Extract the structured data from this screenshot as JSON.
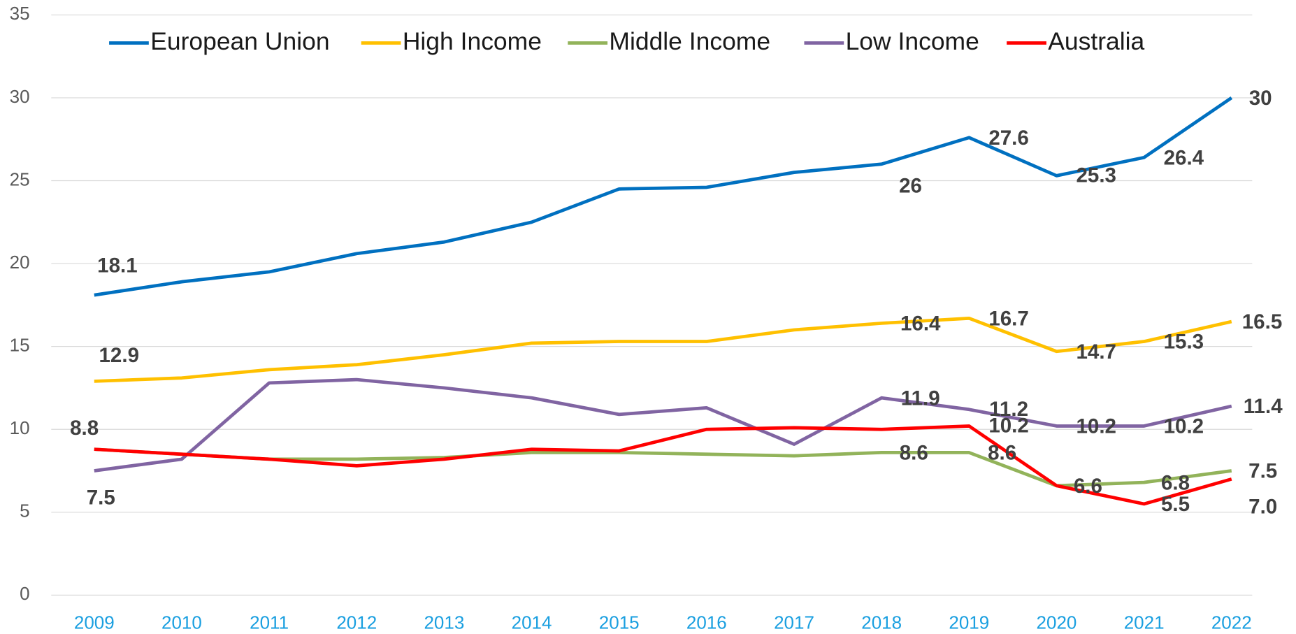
{
  "chart_data": {
    "type": "line",
    "categories": [
      "2009",
      "2010",
      "2011",
      "2012",
      "2013",
      "2014",
      "2015",
      "2016",
      "2017",
      "2018",
      "2019",
      "2020",
      "2021",
      "2022"
    ],
    "ylim": [
      0,
      35
    ],
    "yticks": [
      0,
      5,
      10,
      15,
      20,
      25,
      30,
      35
    ],
    "grid": true,
    "legend": "top",
    "series": [
      {
        "name": "European Union",
        "color": "#0070c0",
        "values": [
          18.1,
          18.9,
          19.5,
          20.6,
          21.3,
          22.5,
          24.5,
          24.6,
          25.5,
          26,
          27.6,
          25.3,
          26.4,
          30
        ],
        "value_labels": [
          "18.1",
          null,
          null,
          null,
          null,
          null,
          null,
          null,
          null,
          "26",
          "27.6",
          "25.3",
          "26.4",
          "30"
        ]
      },
      {
        "name": "High Income",
        "color": "#ffc000",
        "values": [
          12.9,
          13.1,
          13.6,
          13.9,
          14.5,
          15.2,
          15.3,
          15.3,
          16.0,
          16.4,
          16.7,
          14.7,
          15.3,
          16.5
        ],
        "value_labels": [
          "12.9",
          null,
          null,
          null,
          null,
          null,
          null,
          null,
          null,
          "16.4",
          "16.7",
          "14.7",
          "15.3",
          "16.5"
        ]
      },
      {
        "name": "Middle Income",
        "color": "#92b35a",
        "values": [
          8.8,
          8.5,
          8.2,
          8.2,
          8.3,
          8.6,
          8.6,
          8.5,
          8.4,
          8.6,
          8.6,
          6.6,
          6.8,
          7.5
        ],
        "value_labels": [
          null,
          null,
          null,
          null,
          null,
          null,
          null,
          null,
          null,
          "8.6",
          "8.6",
          "6.6",
          "6.8",
          "7.5"
        ]
      },
      {
        "name": "Low Income",
        "color": "#8064a2",
        "values": [
          7.5,
          8.2,
          12.8,
          13.0,
          12.5,
          11.9,
          10.9,
          11.3,
          9.1,
          11.9,
          11.2,
          10.2,
          10.2,
          11.4
        ],
        "value_labels": [
          "7.5",
          null,
          null,
          null,
          null,
          null,
          null,
          null,
          null,
          "11.9",
          "11.2",
          "10.2",
          "10.2",
          "11.4"
        ]
      },
      {
        "name": "Australia",
        "color": "#ff0000",
        "values": [
          8.8,
          8.5,
          8.2,
          7.8,
          8.2,
          8.8,
          8.7,
          10.0,
          10.1,
          10.0,
          10.2,
          6.6,
          5.5,
          7.0
        ],
        "value_labels": [
          "8.8",
          null,
          null,
          null,
          null,
          null,
          null,
          null,
          null,
          null,
          "10.2",
          null,
          "5.5",
          "7.0"
        ]
      }
    ]
  }
}
